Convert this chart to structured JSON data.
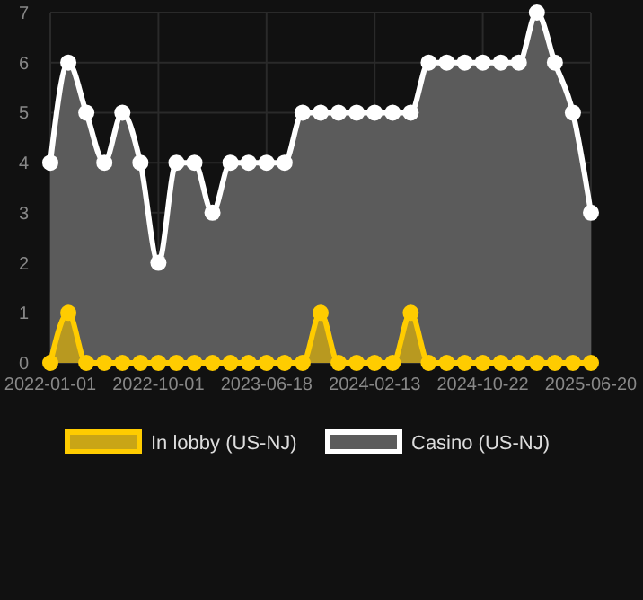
{
  "chart_data": {
    "type": "area",
    "categories": [
      "2022-01-01",
      null,
      null,
      null,
      null,
      null,
      "2022-10-01",
      null,
      null,
      null,
      null,
      null,
      "2023-06-18",
      null,
      null,
      null,
      null,
      null,
      "2024-02-13",
      null,
      null,
      null,
      null,
      null,
      "2024-10-22",
      null,
      null,
      null,
      null,
      null,
      "2025-06-20"
    ],
    "series": [
      {
        "name": "In lobby (US-NJ)",
        "color": "#ffcc00",
        "values": [
          0,
          1,
          0,
          0,
          0,
          0,
          0,
          0,
          0,
          0,
          0,
          0,
          0,
          0,
          0,
          1,
          0,
          0,
          0,
          0,
          1,
          0,
          0,
          0,
          0,
          0,
          0,
          0,
          0,
          0,
          0
        ]
      },
      {
        "name": "Casino (US-NJ)",
        "color": "#ffffff",
        "values": [
          4,
          6,
          5,
          4,
          5,
          4,
          2,
          4,
          4,
          3,
          4,
          4,
          4,
          4,
          5,
          5,
          5,
          5,
          5,
          5,
          5,
          6,
          6,
          6,
          6,
          6,
          6,
          7,
          6,
          5,
          3
        ]
      }
    ],
    "ylim": [
      0,
      7
    ],
    "yticks": [
      0,
      1,
      2,
      3,
      4,
      5,
      6,
      7
    ],
    "grid": true,
    "legend": "bottom",
    "marker": "circle"
  }
}
